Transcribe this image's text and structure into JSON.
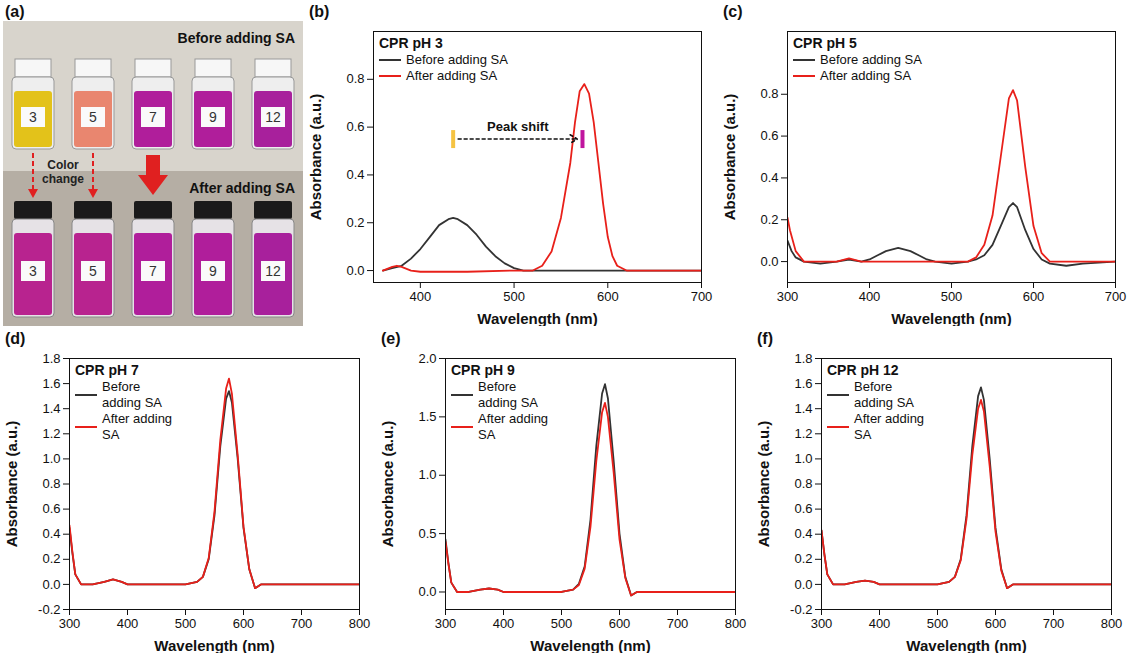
{
  "photo": {
    "panel_label": "(a)",
    "before_label": "Before adding SA",
    "after_label": "After adding SA",
    "change_label": "Color change",
    "vials": [
      {
        "label": "3",
        "before": "#e3c21a",
        "after": "#b8238f"
      },
      {
        "label": "5",
        "before": "#e9866f",
        "after": "#b8238f"
      },
      {
        "label": "7",
        "before": "#b01e9b",
        "after": "#b01e9b"
      },
      {
        "label": "9",
        "before": "#b01e9b",
        "after": "#b01e9b"
      },
      {
        "label": "12",
        "before": "#a8209c",
        "after": "#a8209c"
      }
    ]
  },
  "chart_data": [
    {
      "panel_label": "(b)",
      "type": "line",
      "title": "CPR pH 3",
      "x_label": "Wavelength (nm)",
      "y_label": "Absorbance (a.u.)",
      "xlim": [
        350,
        700
      ],
      "xticks": [
        400,
        500,
        600,
        700
      ],
      "ylim": [
        -0.05,
        1.0
      ],
      "yticks": [
        {
          "value": 0,
          "label": "0.0"
        },
        0.2,
        0.4,
        0.6,
        0.8
      ],
      "grid": false,
      "legend": "top-left",
      "series": [
        {
          "name": "Before adding SA",
          "color": "#333333",
          "x": [
            360,
            370,
            380,
            390,
            400,
            410,
            420,
            430,
            435,
            440,
            450,
            460,
            470,
            480,
            490,
            500,
            510,
            520,
            550,
            600,
            650,
            700
          ],
          "values": [
            0.0,
            0.01,
            0.02,
            0.05,
            0.09,
            0.14,
            0.19,
            0.215,
            0.22,
            0.215,
            0.19,
            0.15,
            0.1,
            0.06,
            0.03,
            0.01,
            0.0,
            0.0,
            0.0,
            0.0,
            0.0,
            0.0
          ]
        },
        {
          "name": "After adding SA",
          "color": "#e8201a",
          "x": [
            360,
            370,
            375,
            380,
            390,
            400,
            450,
            500,
            520,
            530,
            540,
            550,
            560,
            565,
            570,
            575,
            580,
            585,
            590,
            595,
            600,
            605,
            610,
            620,
            650,
            700
          ],
          "values": [
            0.0,
            0.015,
            0.02,
            0.015,
            0.0,
            -0.005,
            -0.005,
            0.0,
            0.0,
            0.02,
            0.08,
            0.22,
            0.45,
            0.62,
            0.75,
            0.78,
            0.74,
            0.62,
            0.45,
            0.28,
            0.14,
            0.06,
            0.02,
            0.0,
            0.0,
            0.0
          ]
        }
      ],
      "annotations": [
        {
          "text": "Peak shift",
          "x_from": 435,
          "x_to": 573,
          "y": 0.55,
          "colors": [
            "#f5c342",
            "#c0169e"
          ]
        }
      ]
    },
    {
      "panel_label": "(c)",
      "type": "line",
      "title": "CPR pH 5",
      "x_label": "Wavelength (nm)",
      "y_label": "Absorbance (a.u.)",
      "xlim": [
        300,
        700
      ],
      "xticks": [
        300,
        400,
        500,
        600,
        700
      ],
      "ylim": [
        -0.1,
        1.1
      ],
      "yticks": [
        {
          "value": 0,
          "label": "0.0"
        },
        0.2,
        0.4,
        0.6,
        0.8
      ],
      "grid": false,
      "legend": "top-left",
      "series": [
        {
          "name": "Before adding SA",
          "color": "#333333",
          "x": [
            300,
            305,
            310,
            320,
            340,
            360,
            375,
            390,
            400,
            410,
            420,
            435,
            450,
            460,
            470,
            480,
            500,
            520,
            530,
            540,
            550,
            560,
            570,
            575,
            580,
            590,
            600,
            610,
            620,
            640,
            660,
            700
          ],
          "values": [
            0.1,
            0.05,
            0.02,
            0.0,
            -0.01,
            0.0,
            0.01,
            0.0,
            0.01,
            0.03,
            0.05,
            0.065,
            0.05,
            0.03,
            0.01,
            0.0,
            -0.01,
            0.0,
            0.01,
            0.03,
            0.08,
            0.17,
            0.26,
            0.28,
            0.26,
            0.15,
            0.06,
            0.01,
            -0.01,
            -0.02,
            -0.01,
            0.0
          ]
        },
        {
          "name": "After adding SA",
          "color": "#e8201a",
          "x": [
            300,
            303,
            310,
            320,
            340,
            360,
            375,
            390,
            420,
            450,
            500,
            520,
            530,
            540,
            550,
            560,
            570,
            575,
            580,
            590,
            600,
            610,
            620,
            650,
            700
          ],
          "values": [
            0.21,
            0.15,
            0.05,
            0.0,
            0.0,
            0.0,
            0.015,
            0.0,
            0.0,
            0.0,
            0.0,
            0.0,
            0.02,
            0.08,
            0.22,
            0.5,
            0.78,
            0.82,
            0.77,
            0.45,
            0.17,
            0.04,
            0.0,
            0.0,
            0.0
          ]
        }
      ]
    },
    {
      "panel_label": "(d)",
      "type": "line",
      "title": "CPR pH 7",
      "x_label": "Wavelength (nm)",
      "y_label": "Absorbance (a.u.)",
      "xlim": [
        300,
        800
      ],
      "xticks": [
        300,
        400,
        500,
        600,
        700,
        800
      ],
      "ylim": [
        -0.2,
        1.8
      ],
      "yticks": [
        -0.2,
        {
          "value": 0,
          "label": "0.0"
        },
        0.2,
        0.4,
        0.6,
        0.8,
        {
          "value": 1,
          "label": "1.0"
        },
        1.2,
        1.4,
        1.6,
        1.8
      ],
      "grid": false,
      "legend": "top-left",
      "series": [
        {
          "name": "Before adding SA",
          "color": "#333333",
          "x": [
            300,
            305,
            310,
            320,
            340,
            360,
            375,
            390,
            400,
            450,
            500,
            520,
            530,
            540,
            550,
            560,
            570,
            575,
            580,
            590,
            600,
            610,
            620,
            630,
            700,
            800
          ],
          "values": [
            0.45,
            0.25,
            0.08,
            0.0,
            0.0,
            0.02,
            0.04,
            0.02,
            0.0,
            0.0,
            0.0,
            0.02,
            0.06,
            0.2,
            0.55,
            1.1,
            1.48,
            1.54,
            1.45,
            1.0,
            0.45,
            0.12,
            -0.03,
            0.0,
            0.0,
            0.0
          ]
        },
        {
          "name": "After adding SA",
          "color": "#e8201a",
          "x": [
            300,
            305,
            310,
            320,
            340,
            360,
            375,
            390,
            400,
            450,
            500,
            520,
            530,
            540,
            550,
            560,
            570,
            575,
            580,
            590,
            600,
            610,
            620,
            630,
            700,
            800
          ],
          "values": [
            0.47,
            0.26,
            0.08,
            0.0,
            0.0,
            0.02,
            0.04,
            0.02,
            0.0,
            0.0,
            0.0,
            0.02,
            0.06,
            0.21,
            0.58,
            1.15,
            1.56,
            1.64,
            1.52,
            1.03,
            0.46,
            0.12,
            -0.03,
            0.0,
            0.0,
            0.0
          ]
        }
      ]
    },
    {
      "panel_label": "(e)",
      "type": "line",
      "title": "CPR pH 9",
      "x_label": "Wavelength (nm)",
      "y_label": "Absorbance (a.u.)",
      "xlim": [
        300,
        800
      ],
      "xticks": [
        300,
        400,
        500,
        600,
        700,
        800
      ],
      "ylim": [
        -0.15,
        2.0
      ],
      "yticks": [
        {
          "value": 0,
          "label": "0.0"
        },
        0.5,
        {
          "value": 1,
          "label": "1.0"
        },
        1.5,
        {
          "value": 2,
          "label": "2.0"
        }
      ],
      "grid": false,
      "legend": "top-left",
      "series": [
        {
          "name": "Before adding SA",
          "color": "#333333",
          "x": [
            300,
            305,
            310,
            320,
            340,
            360,
            375,
            390,
            400,
            450,
            500,
            520,
            530,
            540,
            550,
            560,
            570,
            575,
            580,
            590,
            600,
            610,
            620,
            630,
            700,
            800
          ],
          "values": [
            0.45,
            0.25,
            0.08,
            0.0,
            0.0,
            0.02,
            0.03,
            0.02,
            0.0,
            0.0,
            0.0,
            0.02,
            0.07,
            0.22,
            0.62,
            1.25,
            1.7,
            1.78,
            1.66,
            1.12,
            0.5,
            0.13,
            -0.03,
            0.0,
            0.0,
            0.0
          ]
        },
        {
          "name": "After adding SA",
          "color": "#e8201a",
          "x": [
            300,
            305,
            310,
            320,
            340,
            360,
            375,
            390,
            400,
            450,
            500,
            520,
            530,
            540,
            550,
            560,
            570,
            575,
            580,
            590,
            600,
            610,
            620,
            630,
            700,
            800
          ],
          "values": [
            0.43,
            0.24,
            0.08,
            0.0,
            0.0,
            0.02,
            0.03,
            0.02,
            0.0,
            0.0,
            0.0,
            0.02,
            0.06,
            0.2,
            0.56,
            1.12,
            1.54,
            1.62,
            1.5,
            1.02,
            0.45,
            0.12,
            -0.03,
            0.0,
            0.0,
            0.0
          ]
        }
      ]
    },
    {
      "panel_label": "(f)",
      "type": "line",
      "title": "CPR pH 12",
      "x_label": "Wavelength (nm)",
      "y_label": "Absorbance (a.u.)",
      "xlim": [
        300,
        800
      ],
      "xticks": [
        300,
        400,
        500,
        600,
        700,
        800
      ],
      "ylim": [
        -0.2,
        1.8
      ],
      "yticks": [
        -0.2,
        {
          "value": 0,
          "label": "0.0"
        },
        0.2,
        0.4,
        0.6,
        0.8,
        {
          "value": 1,
          "label": "1.0"
        },
        1.2,
        1.4,
        1.6,
        1.8
      ],
      "grid": false,
      "legend": "top-left",
      "series": [
        {
          "name": "Before adding SA",
          "color": "#333333",
          "x": [
            300,
            305,
            310,
            320,
            340,
            360,
            375,
            390,
            400,
            450,
            500,
            520,
            530,
            540,
            550,
            560,
            570,
            575,
            580,
            590,
            600,
            610,
            620,
            630,
            700,
            800
          ],
          "values": [
            0.43,
            0.24,
            0.08,
            0.0,
            0.0,
            0.02,
            0.03,
            0.02,
            0.0,
            0.0,
            0.0,
            0.02,
            0.06,
            0.2,
            0.55,
            1.1,
            1.5,
            1.57,
            1.47,
            1.0,
            0.45,
            0.12,
            -0.03,
            0.0,
            0.0,
            0.0
          ]
        },
        {
          "name": "After adding SA",
          "color": "#e8201a",
          "x": [
            300,
            305,
            310,
            320,
            340,
            360,
            375,
            390,
            400,
            450,
            500,
            520,
            530,
            540,
            550,
            560,
            570,
            575,
            580,
            590,
            600,
            610,
            620,
            630,
            700,
            800
          ],
          "values": [
            0.43,
            0.24,
            0.08,
            0.0,
            0.0,
            0.02,
            0.03,
            0.02,
            0.0,
            0.0,
            0.0,
            0.02,
            0.06,
            0.19,
            0.52,
            1.03,
            1.4,
            1.47,
            1.38,
            0.94,
            0.42,
            0.11,
            -0.03,
            0.0,
            0.0,
            0.0
          ]
        }
      ]
    }
  ]
}
